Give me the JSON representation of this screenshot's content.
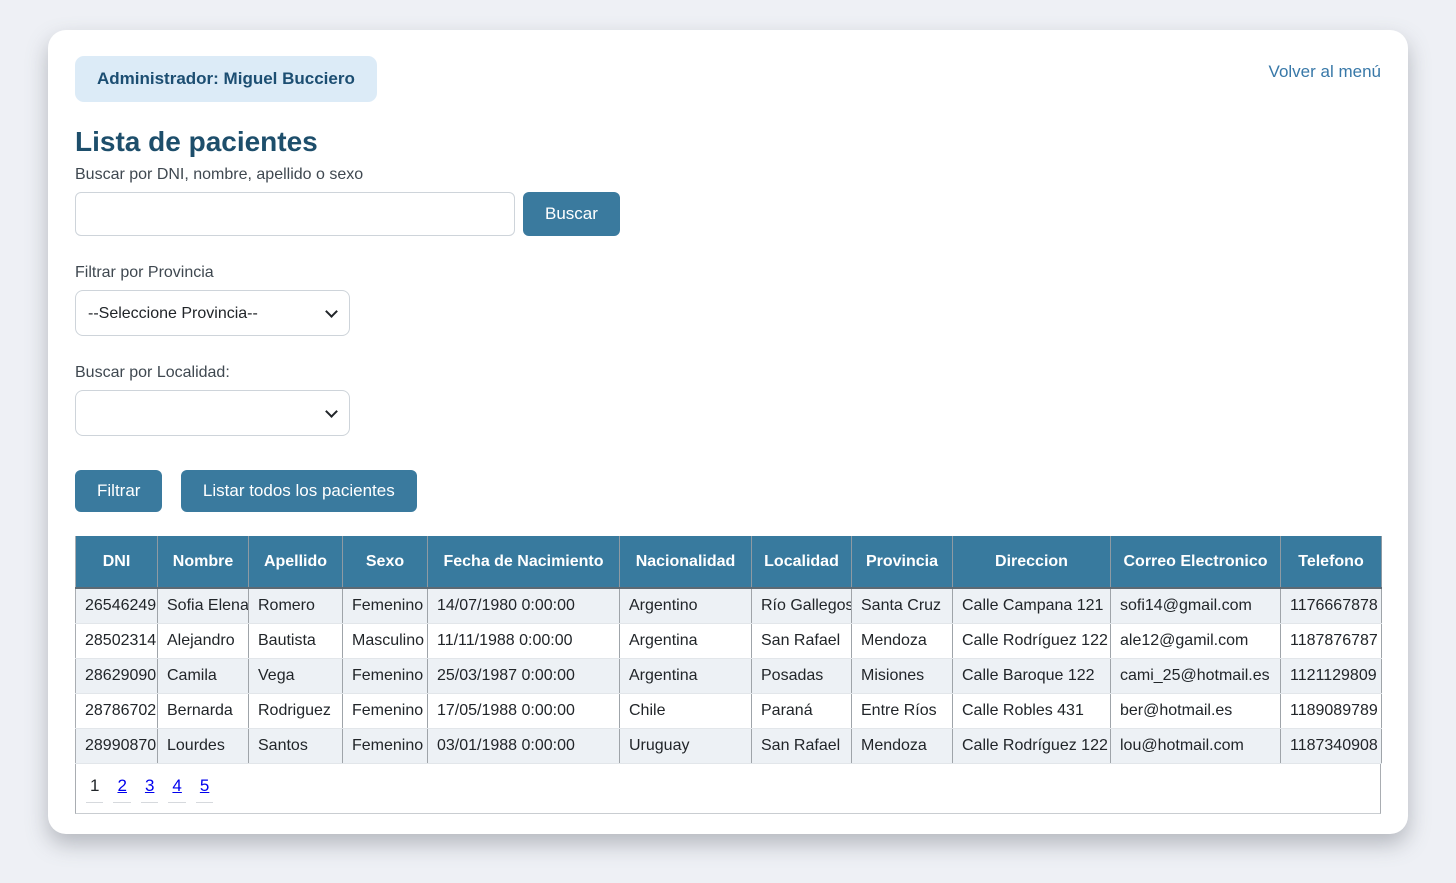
{
  "header": {
    "admin_badge": "Administrador: Miguel Bucciero",
    "back_link": "Volver al menú"
  },
  "page": {
    "title": "Lista de pacientes"
  },
  "search": {
    "label": "Buscar por DNI, nombre, apellido o sexo",
    "value": "",
    "button_label": "Buscar"
  },
  "filters": {
    "province_label": "Filtrar por Provincia",
    "province_selected": "--Seleccione Provincia--",
    "locality_label": "Buscar por Localidad:",
    "locality_selected": "",
    "filter_button": "Filtrar",
    "list_all_button": "Listar todos los pacientes"
  },
  "table": {
    "columns": [
      "DNI",
      "Nombre",
      "Apellido",
      "Sexo",
      "Fecha de Nacimiento",
      "Nacionalidad",
      "Localidad",
      "Provincia",
      "Direccion",
      "Correo Electronico",
      "Telefono"
    ],
    "rows": [
      [
        "26546249",
        "Sofia Elena",
        "Romero",
        "Femenino",
        "14/07/1980 0:00:00",
        "Argentino",
        "Río Gallegos",
        "Santa Cruz",
        "Calle Campana 121",
        "sofi14@gmail.com",
        "1176667878"
      ],
      [
        "28502314",
        "Alejandro",
        "Bautista",
        "Masculino",
        "11/11/1988 0:00:00",
        "Argentina",
        "San Rafael",
        "Mendoza",
        "Calle Rodríguez 122",
        "ale12@gamil.com",
        "1187876787"
      ],
      [
        "28629090",
        "Camila",
        "Vega",
        "Femenino",
        "25/03/1987 0:00:00",
        "Argentina",
        "Posadas",
        "Misiones",
        "Calle Baroque 122",
        "cami_25@hotmail.es",
        "1121129809"
      ],
      [
        "28786702",
        "Bernarda",
        "Rodriguez",
        "Femenino",
        "17/05/1988 0:00:00",
        "Chile",
        "Paraná",
        "Entre Ríos",
        "Calle Robles 431",
        "ber@hotmail.es",
        "1189089789"
      ],
      [
        "28990870",
        "Lourdes",
        "Santos",
        "Femenino",
        "03/01/1988 0:00:00",
        "Uruguay",
        "San Rafael",
        "Mendoza",
        "Calle Rodríguez 122",
        "lou@hotmail.com",
        "1187340908"
      ]
    ]
  },
  "pagination": {
    "current": "1",
    "pages": [
      "1",
      "2",
      "3",
      "4",
      "5"
    ]
  },
  "colors": {
    "accent": "#3a7a9e",
    "table_header_bg": "#387a9e",
    "badge_bg": "#dcebf7",
    "title_text": "#1d4e6b",
    "link": "#3878a8",
    "pager_link": "#0000EE",
    "stripe_row_bg": "#edf1f5",
    "page_bg": "#eef0f5"
  }
}
